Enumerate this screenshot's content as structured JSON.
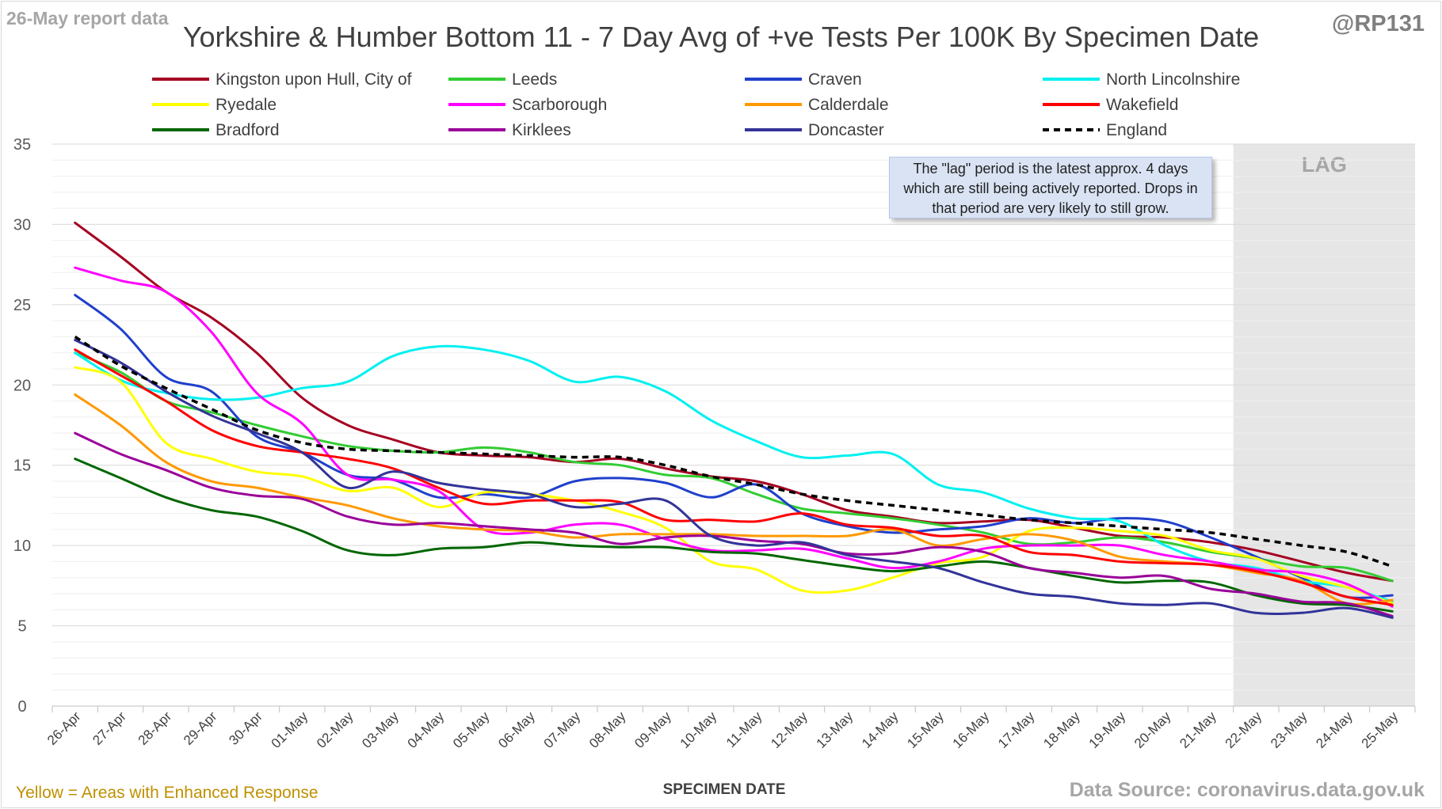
{
  "header": {
    "report_label": "26-May report data",
    "handle": "@RP131"
  },
  "footer": {
    "note": "Yellow = Areas with Enhanced Response",
    "source": "Data Source: coronavirus.data.gov.uk"
  },
  "annotation": {
    "text": "The \"lag\" period is the latest approx. 4 days which are still being actively reported.  Drops in that period are very likely to still grow."
  },
  "chart_data": {
    "type": "line",
    "title": "Yorkshire & Humber Bottom 11 - 7 Day Avg of +ve Tests Per 100K By Specimen Date",
    "xlabel": "SPECIMEN DATE",
    "ylabel": "",
    "ylim": [
      0,
      35
    ],
    "yticks": [
      0,
      5,
      10,
      15,
      20,
      25,
      30,
      35
    ],
    "grid": true,
    "legend_position": "top",
    "lag_label": "LAG",
    "lag_start": "22-May",
    "lag_end": "25-May",
    "categories": [
      "26-Apr",
      "27-Apr",
      "28-Apr",
      "29-Apr",
      "30-Apr",
      "01-May",
      "02-May",
      "03-May",
      "04-May",
      "05-May",
      "06-May",
      "07-May",
      "08-May",
      "09-May",
      "10-May",
      "11-May",
      "12-May",
      "13-May",
      "14-May",
      "15-May",
      "16-May",
      "17-May",
      "18-May",
      "19-May",
      "20-May",
      "21-May",
      "22-May",
      "23-May",
      "24-May",
      "25-May"
    ],
    "series": [
      {
        "name": "Kingston upon Hull, City of",
        "color": "#a50021",
        "dashed": false,
        "values": [
          30.1,
          28.0,
          25.8,
          24.2,
          22.0,
          19.2,
          17.5,
          16.6,
          15.8,
          15.6,
          15.5,
          15.2,
          15.4,
          14.8,
          14.3,
          14.0,
          13.2,
          12.2,
          11.8,
          11.4,
          11.5,
          11.6,
          11.1,
          10.6,
          10.5,
          10.2,
          9.7,
          9.0,
          8.3,
          7.8
        ]
      },
      {
        "name": "Leeds",
        "color": "#33cc33",
        "dashed": false,
        "values": [
          22.0,
          20.8,
          19.0,
          18.3,
          17.5,
          16.8,
          16.2,
          15.9,
          15.8,
          16.1,
          15.8,
          15.2,
          15.0,
          14.4,
          14.2,
          13.2,
          12.3,
          12.0,
          11.7,
          11.3,
          10.8,
          10.1,
          10.2,
          10.5,
          10.2,
          9.6,
          9.2,
          8.7,
          8.6,
          7.8
        ]
      },
      {
        "name": "Craven",
        "color": "#1f3fcc",
        "dashed": false,
        "values": [
          25.6,
          23.5,
          20.5,
          19.6,
          16.8,
          15.8,
          14.4,
          14.1,
          13.0,
          13.2,
          13.0,
          14.0,
          14.2,
          13.9,
          13.0,
          13.8,
          12.0,
          11.2,
          10.8,
          11.0,
          11.2,
          11.7,
          11.4,
          11.7,
          11.5,
          10.5,
          9.3,
          8.0,
          6.8,
          6.9
        ]
      },
      {
        "name": "North Lincolnshire",
        "color": "#00f0f0",
        "dashed": false,
        "values": [
          22.0,
          20.3,
          19.5,
          19.1,
          19.2,
          19.8,
          20.2,
          21.8,
          22.4,
          22.2,
          21.5,
          20.2,
          20.5,
          19.6,
          17.8,
          16.5,
          15.5,
          15.6,
          15.7,
          13.8,
          13.3,
          12.3,
          11.7,
          11.5,
          10.0,
          9.0,
          8.6,
          7.8,
          7.4,
          6.5
        ]
      },
      {
        "name": "Ryedale",
        "color": "#ffff00",
        "dashed": false,
        "values": [
          21.1,
          20.2,
          16.4,
          15.4,
          14.6,
          14.3,
          13.4,
          13.6,
          12.4,
          13.3,
          13.2,
          12.8,
          12.1,
          11.1,
          9.0,
          8.5,
          7.2,
          7.2,
          8.0,
          8.9,
          9.3,
          10.9,
          11.1,
          10.9,
          10.6,
          9.7,
          9.2,
          8.1,
          7.4,
          6.4
        ]
      },
      {
        "name": "Scarborough",
        "color": "#ff00ff",
        "dashed": false,
        "values": [
          27.3,
          26.5,
          25.8,
          23.3,
          19.5,
          17.6,
          14.4,
          14.1,
          13.4,
          11.0,
          10.8,
          11.3,
          11.3,
          10.4,
          9.7,
          9.7,
          9.8,
          9.2,
          8.6,
          9.0,
          9.8,
          10.0,
          10.0,
          10.0,
          9.4,
          9.0,
          8.5,
          8.3,
          7.6,
          6.2
        ]
      },
      {
        "name": "Calderdale",
        "color": "#ff9900",
        "dashed": false,
        "values": [
          19.4,
          17.5,
          15.2,
          14.0,
          13.6,
          13.0,
          12.5,
          11.7,
          11.2,
          11.0,
          10.9,
          10.5,
          10.7,
          10.7,
          10.7,
          10.6,
          10.6,
          10.6,
          11.0,
          10.0,
          10.4,
          10.7,
          10.3,
          9.3,
          9.0,
          8.8,
          8.3,
          7.8,
          6.4,
          6.6
        ]
      },
      {
        "name": "Wakefield",
        "color": "#ff0000",
        "dashed": false,
        "values": [
          22.2,
          20.6,
          19.0,
          17.2,
          16.2,
          15.8,
          15.4,
          14.8,
          13.6,
          12.6,
          12.8,
          12.8,
          12.7,
          11.6,
          11.6,
          11.5,
          12.0,
          11.3,
          11.1,
          10.6,
          10.6,
          9.6,
          9.4,
          9.0,
          8.9,
          8.8,
          8.4,
          7.7,
          6.8,
          6.3
        ]
      },
      {
        "name": "Bradford",
        "color": "#006600",
        "dashed": false,
        "values": [
          15.4,
          14.2,
          13.0,
          12.2,
          11.8,
          10.9,
          9.7,
          9.4,
          9.8,
          9.9,
          10.2,
          10.0,
          9.9,
          9.9,
          9.6,
          9.5,
          9.1,
          8.7,
          8.4,
          8.7,
          9.0,
          8.6,
          8.1,
          7.7,
          7.8,
          7.7,
          6.9,
          6.4,
          6.3,
          5.9
        ]
      },
      {
        "name": "Kirklees",
        "color": "#990099",
        "dashed": false,
        "values": [
          17.0,
          15.7,
          14.7,
          13.6,
          13.1,
          12.9,
          11.8,
          11.3,
          11.4,
          11.2,
          11.0,
          10.8,
          10.1,
          10.5,
          10.6,
          10.3,
          10.1,
          9.5,
          9.5,
          9.9,
          9.6,
          8.6,
          8.3,
          8.0,
          8.1,
          7.3,
          7.0,
          6.5,
          6.4,
          5.6
        ]
      },
      {
        "name": "Doncaster",
        "color": "#333399",
        "dashed": false,
        "values": [
          22.8,
          21.4,
          19.6,
          18.1,
          17.0,
          15.8,
          13.6,
          14.6,
          13.9,
          13.5,
          13.2,
          12.4,
          12.6,
          12.8,
          10.6,
          10.0,
          10.2,
          9.4,
          9.0,
          8.6,
          7.7,
          7.0,
          6.8,
          6.4,
          6.3,
          6.4,
          5.8,
          5.8,
          6.1,
          5.5
        ]
      },
      {
        "name": "England",
        "color": "#000000",
        "dashed": true,
        "values": [
          23.0,
          21.2,
          19.8,
          18.5,
          17.2,
          16.4,
          16.0,
          15.9,
          15.8,
          15.7,
          15.6,
          15.5,
          15.5,
          15.0,
          14.3,
          13.8,
          13.2,
          12.8,
          12.5,
          12.2,
          11.9,
          11.6,
          11.4,
          11.2,
          11.0,
          10.8,
          10.4,
          10.0,
          9.6,
          8.7
        ]
      }
    ]
  }
}
